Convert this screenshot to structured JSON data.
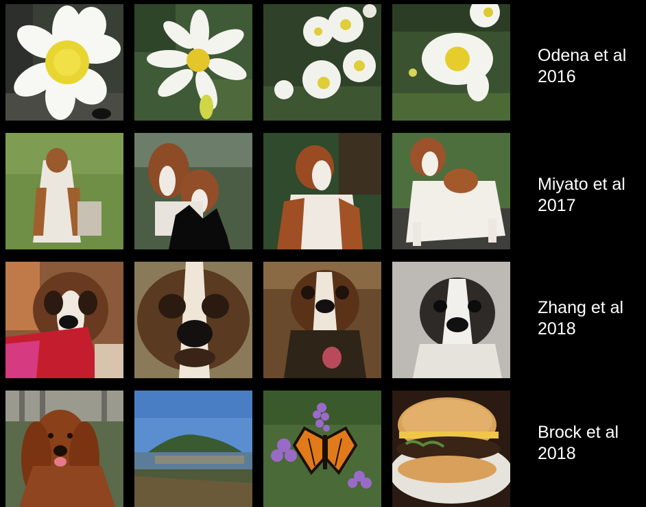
{
  "rows": [
    {
      "author": "Odena et al",
      "year": "2016",
      "subject": "daisy flowers"
    },
    {
      "author": "Miyato et al",
      "year": "2017",
      "subject": "brittany spaniels"
    },
    {
      "author": "Zhang et al",
      "year": "2018",
      "subject": "saint bernards"
    },
    {
      "author": "Brock et al",
      "year": "2018",
      "subject": "mixed classes"
    }
  ],
  "tiles": [
    [
      "daisy-closeup",
      "daisy-single",
      "daisy-cluster",
      "daisy-field"
    ],
    [
      "spaniel-grass",
      "spaniel-pair",
      "spaniel-sitting",
      "spaniel-standing"
    ],
    [
      "saint-bernard-red-blanket",
      "saint-bernard-face",
      "saint-bernard-brown",
      "saint-bernard-gray"
    ],
    [
      "cocker-spaniel",
      "coastal-island",
      "monarch-butterfly",
      "cheeseburger"
    ]
  ],
  "colors": {
    "background": "#000000",
    "text": "#ffffff"
  }
}
